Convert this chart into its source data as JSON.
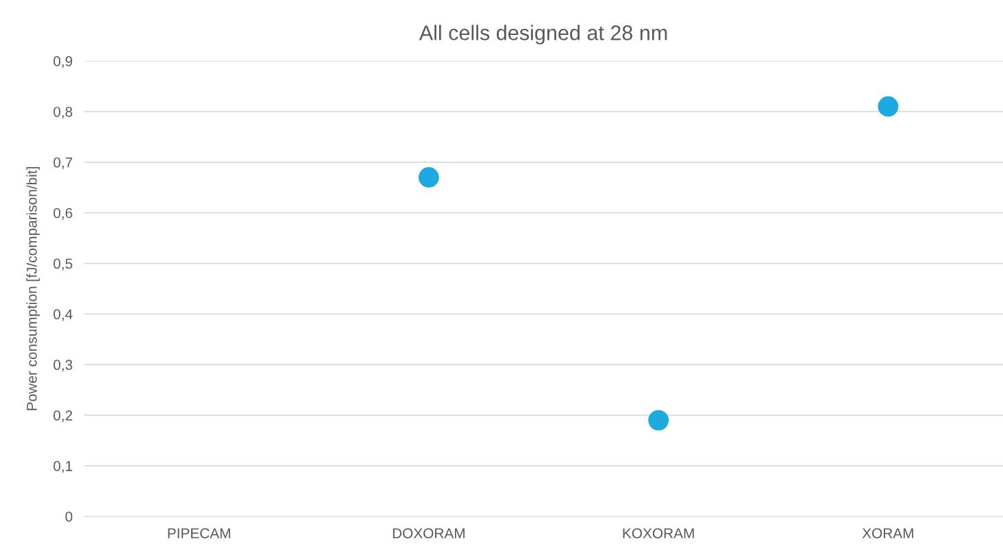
{
  "chart_data": {
    "type": "scatter",
    "title": "All cells designed at 28 nm",
    "ylabel": "Power consumption [fJ/comparison/bit]",
    "categories": [
      "PIPECAM",
      "DOXORAM",
      "KOXORAM",
      "XORAM"
    ],
    "series": [
      {
        "color": "#1fa9e1",
        "values": [
          null,
          0.67,
          0.19,
          0.81
        ]
      }
    ],
    "ylim": [
      0,
      0.9
    ],
    "yticks": [
      0,
      {
        "value": 0.1,
        "label": "0,1"
      },
      {
        "value": 0.2,
        "label": "0,2"
      },
      {
        "value": 0.3,
        "label": "0,3"
      },
      {
        "value": 0.4,
        "label": "0,4"
      },
      {
        "value": 0.5,
        "label": "0,5"
      },
      {
        "value": 0.6,
        "label": "0,6"
      },
      {
        "value": 0.7,
        "label": "0,7"
      },
      {
        "value": 0.8,
        "label": "0,8"
      },
      {
        "value": 0.9,
        "label": "0,9"
      }
    ],
    "grid": "y",
    "marker": "circle"
  }
}
